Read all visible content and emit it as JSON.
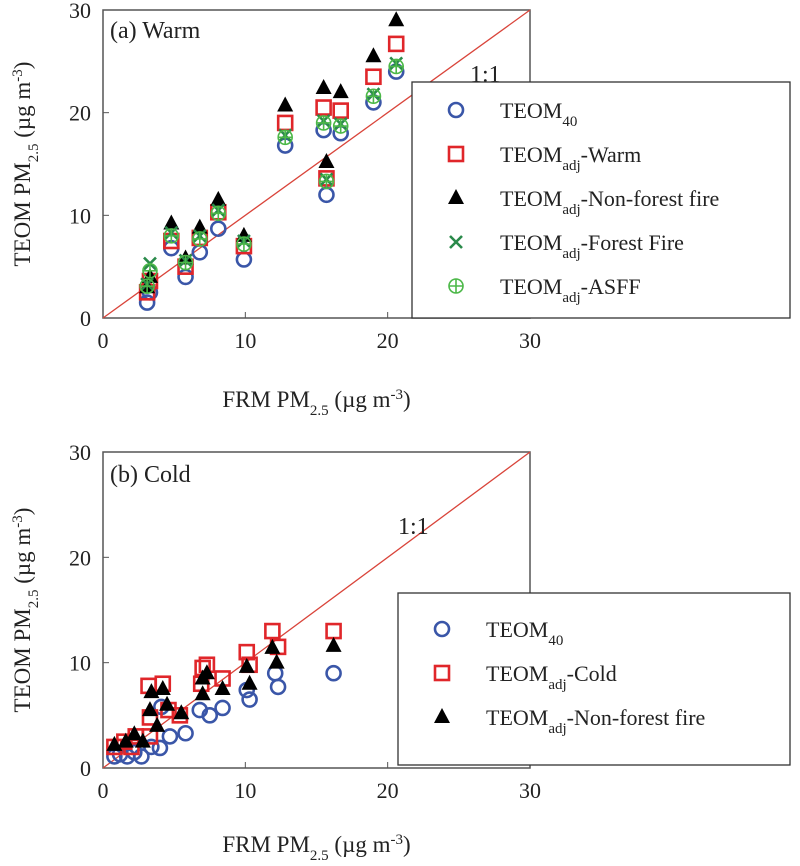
{
  "chart_data": [
    {
      "type": "scatter",
      "title": "(a) Warm",
      "xlim": [
        0,
        30
      ],
      "ylim": [
        0,
        30
      ],
      "xticks": [
        0,
        10,
        20,
        30
      ],
      "yticks": [
        0,
        10,
        20,
        30
      ],
      "xlabel": {
        "main": "FRM PM",
        "sub": "2.5",
        "unit": " (µg m",
        "sup": "-3",
        "close": ")"
      },
      "ylabel": {
        "main": "TEOM PM",
        "sub": "2.5",
        "unit": " (µg m",
        "sup": "-3",
        "close": ")"
      },
      "ref_line": {
        "label": "1:1",
        "color": "#d9443a"
      },
      "legend_position": "right",
      "series": [
        {
          "name": "TEOM",
          "sub": "40",
          "suffix": "",
          "marker": "circle",
          "color": "#3a56a8",
          "x": [
            3.1,
            3.3,
            4.8,
            5.8,
            6.8,
            8.1,
            9.9,
            12.8,
            15.5,
            15.7,
            16.7,
            19.0,
            20.6
          ],
          "y": [
            1.5,
            2.5,
            6.8,
            4.0,
            6.4,
            8.7,
            5.7,
            16.8,
            18.3,
            12.0,
            18.0,
            21.0,
            24.0
          ]
        },
        {
          "name": "TEOM",
          "sub": "adj",
          "suffix": "-Warm",
          "marker": "square",
          "color": "#e0262a",
          "x": [
            3.1,
            3.3,
            4.8,
            5.8,
            6.8,
            8.1,
            9.9,
            12.8,
            15.5,
            15.7,
            16.7,
            19.0,
            20.6
          ],
          "y": [
            2.5,
            3.6,
            7.5,
            5.0,
            7.8,
            10.3,
            7.0,
            19.0,
            20.5,
            13.6,
            20.2,
            23.5,
            26.7
          ]
        },
        {
          "name": "TEOM",
          "sub": "adj",
          "suffix": "-Non-forest fire",
          "marker": "triangle",
          "color": "#000000",
          "x": [
            3.1,
            3.3,
            4.8,
            5.8,
            6.8,
            8.1,
            9.9,
            12.8,
            15.5,
            15.7,
            16.7,
            19.0,
            20.6
          ],
          "y": [
            3.0,
            4.0,
            9.2,
            5.8,
            8.8,
            11.5,
            8.0,
            20.7,
            22.4,
            15.2,
            22.0,
            25.5,
            29.0
          ]
        },
        {
          "name": "TEOM",
          "sub": "adj",
          "suffix": "-Forest Fire",
          "marker": "cross",
          "color": "#2a8a4a",
          "x": [
            3.1,
            3.3,
            4.8,
            5.8,
            6.8,
            8.1,
            9.9,
            12.8,
            15.5,
            15.7,
            16.7,
            19.0,
            20.6
          ],
          "y": [
            3.3,
            5.3,
            8.3,
            5.6,
            8.0,
            10.5,
            7.5,
            17.8,
            19.2,
            13.5,
            18.9,
            21.8,
            24.8
          ]
        },
        {
          "name": "TEOM",
          "sub": "adj",
          "suffix": "-ASFF",
          "marker": "circleplus",
          "color": "#4cb848",
          "x": [
            3.1,
            3.3,
            4.8,
            5.8,
            6.8,
            8.1,
            9.9,
            12.8,
            15.5,
            15.7,
            16.7,
            19.0,
            20.6
          ],
          "y": [
            3.1,
            4.6,
            8.0,
            5.4,
            7.7,
            10.2,
            7.2,
            17.6,
            19.0,
            13.3,
            18.7,
            21.6,
            24.5
          ]
        }
      ]
    },
    {
      "type": "scatter",
      "title": "(b) Cold",
      "xlim": [
        0,
        30
      ],
      "ylim": [
        0,
        30
      ],
      "xticks": [
        0,
        10,
        20,
        30
      ],
      "yticks": [
        0,
        10,
        20,
        30
      ],
      "xlabel": {
        "main": "FRM PM",
        "sub": "2.5",
        "unit": " (µg m",
        "sup": "-3",
        "close": ")"
      },
      "ylabel": {
        "main": "TEOM PM",
        "sub": "2.5",
        "unit": " (µg m",
        "sup": "-3",
        "close": ")"
      },
      "ref_line": {
        "label": "1:1",
        "color": "#d9443a"
      },
      "legend_position": "right",
      "series": [
        {
          "name": "TEOM",
          "sub": "40",
          "suffix": "",
          "marker": "circle",
          "color": "#3a56a8",
          "x": [
            0.8,
            1.7,
            2.7,
            4.0,
            4.7,
            5.8,
            6.8,
            7.5,
            8.4,
            10.1,
            10.3,
            12.1,
            12.3,
            16.2,
            4.1,
            1.2,
            2.2,
            3.4
          ],
          "y": [
            1.1,
            1.1,
            1.1,
            1.9,
            3.0,
            3.3,
            5.5,
            5.0,
            5.7,
            7.4,
            6.5,
            9.0,
            7.7,
            9.0,
            5.8,
            1.3,
            1.5,
            2.0
          ]
        },
        {
          "name": "TEOM",
          "sub": "adj",
          "suffix": "-Cold",
          "marker": "square",
          "color": "#e0262a",
          "x": [
            0.8,
            1.5,
            2.3,
            3.2,
            4.2,
            3.3,
            4.6,
            5.4,
            7.0,
            7.3,
            6.9,
            8.4,
            10.1,
            10.3,
            11.9,
            12.3,
            16.2,
            3.3,
            2.0
          ],
          "y": [
            2.0,
            2.5,
            3.0,
            7.8,
            8.0,
            4.8,
            5.5,
            5.0,
            9.5,
            9.8,
            8.0,
            8.5,
            11.0,
            9.8,
            13.0,
            11.5,
            13.0,
            3.0,
            2.0
          ]
        },
        {
          "name": "TEOM",
          "sub": "adj",
          "suffix": "-Non-forest fire",
          "marker": "triangle",
          "color": "#000000",
          "x": [
            0.8,
            1.6,
            2.2,
            3.4,
            4.2,
            3.3,
            4.5,
            5.5,
            7.0,
            7.3,
            7.0,
            8.4,
            10.1,
            10.3,
            11.9,
            12.2,
            16.2,
            2.8,
            3.8
          ],
          "y": [
            2.2,
            2.5,
            3.2,
            7.2,
            7.5,
            5.5,
            6.0,
            5.2,
            8.5,
            9.0,
            7.0,
            7.5,
            9.6,
            8.0,
            11.4,
            10.0,
            11.6,
            2.5,
            4.0
          ]
        }
      ]
    }
  ]
}
